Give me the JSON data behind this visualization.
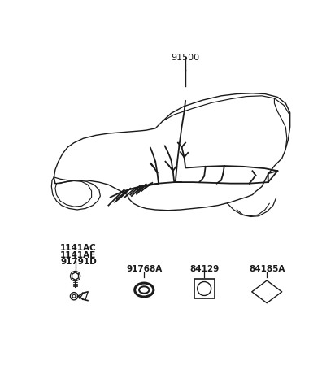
{
  "bg_color": "#ffffff",
  "line_color": "#1a1a1a",
  "label_color": "#1a1a1a",
  "part_label_91500": "91500",
  "part_label_1141AC": "1141AC",
  "part_label_1141AE": "1141AE",
  "part_label_91791D": "91791D",
  "part_label_91768A": "91768A",
  "part_label_84129": "84129",
  "part_label_84185A": "84185A",
  "font_size": 7.5,
  "fig_width": 4.12,
  "fig_height": 4.77
}
